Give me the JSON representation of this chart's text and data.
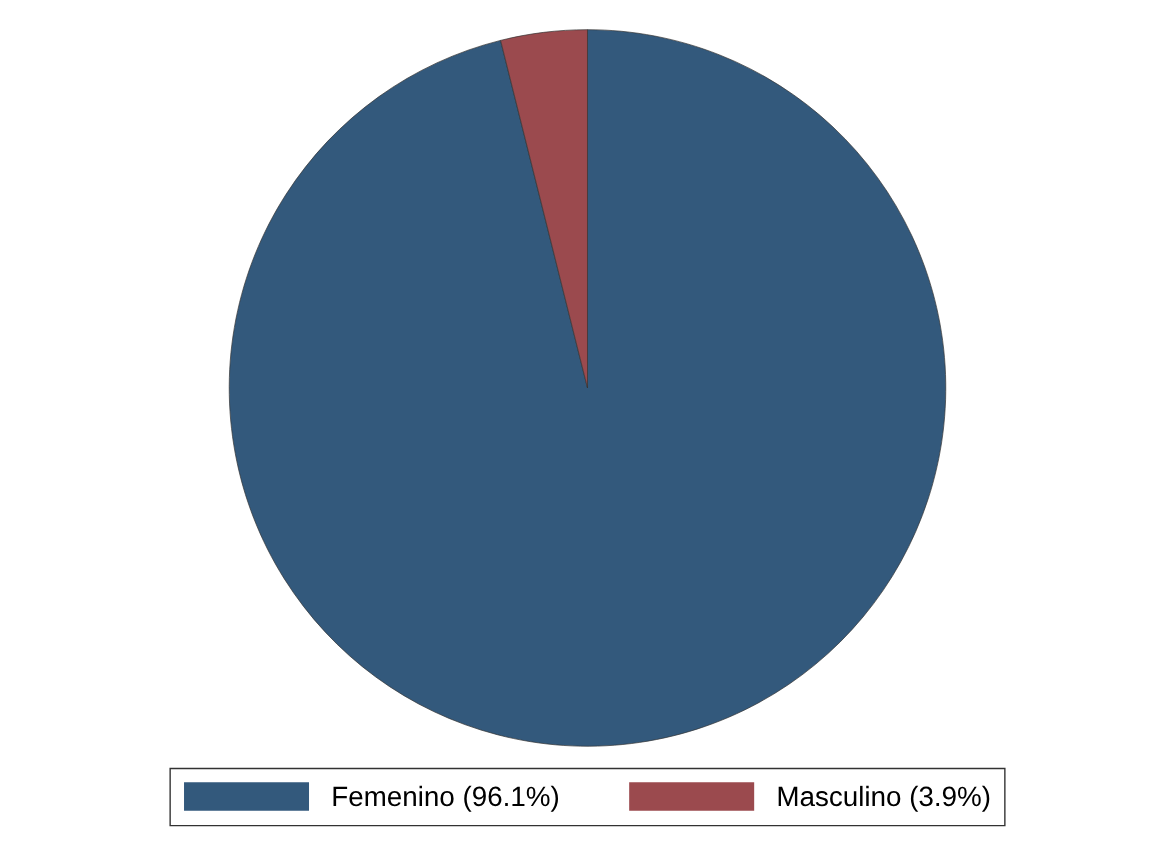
{
  "chart_data": {
    "type": "pie",
    "categories": [
      "Femenino (96.1%)",
      "Masculino (3.9%)"
    ],
    "values": [
      96.1,
      3.9
    ],
    "colors": [
      "#33597c",
      "#9b4a4e"
    ],
    "legend": "bottom"
  }
}
